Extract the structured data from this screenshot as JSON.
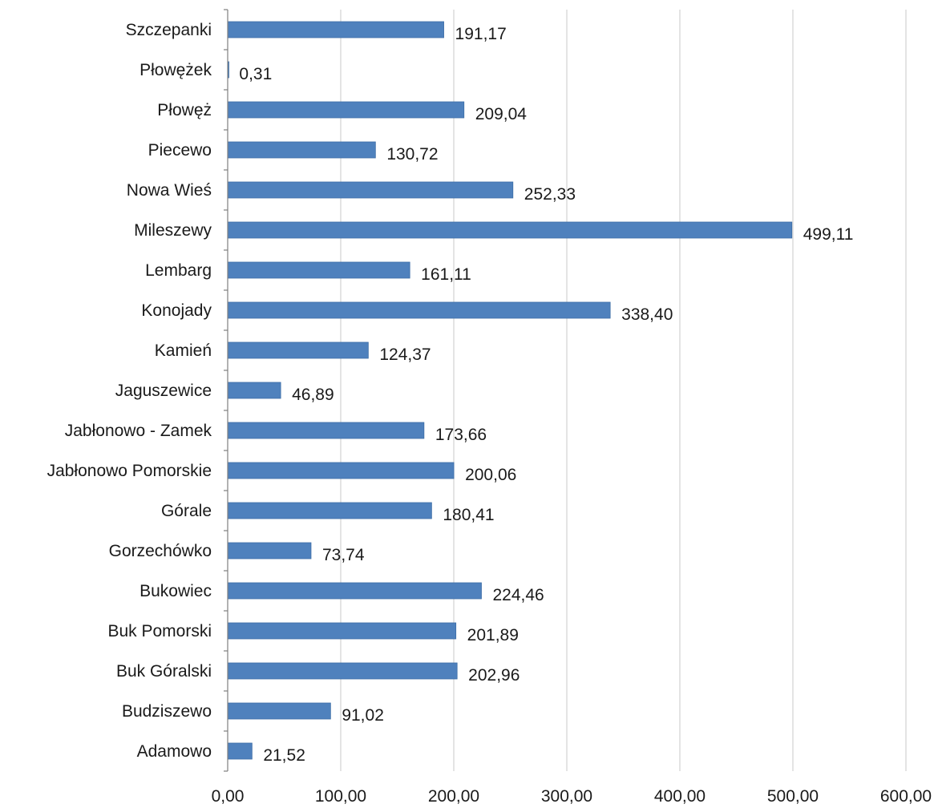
{
  "chart_data": {
    "type": "bar",
    "orientation": "horizontal",
    "categories": [
      "Szczepanki",
      "Płowężek",
      "Płowęż",
      "Piecewo",
      "Nowa Wieś",
      "Mileszewy",
      "Lembarg",
      "Konojady",
      "Kamień",
      "Jaguszewice",
      "Jabłonowo - Zamek",
      "Jabłonowo Pomorskie",
      "Górale",
      "Gorzechówko",
      "Bukowiec",
      "Buk Pomorski",
      "Buk Góralski",
      "Budziszewo",
      "Adamowo"
    ],
    "values": [
      191.17,
      0.31,
      209.04,
      130.72,
      252.33,
      499.11,
      161.11,
      338.4,
      124.37,
      46.89,
      173.66,
      200.06,
      180.41,
      73.74,
      224.46,
      201.89,
      202.96,
      91.02,
      21.52
    ],
    "value_labels": [
      "191,17",
      "0,31",
      "209,04",
      "130,72",
      "252,33",
      "499,11",
      "161,11",
      "338,40",
      "124,37",
      "46,89",
      "173,66",
      "200,06",
      "180,41",
      "73,74",
      "224,46",
      "201,89",
      "202,96",
      "91,02",
      "21,52"
    ],
    "xticks": [
      "0,00",
      "100,00",
      "200,00",
      "300,00",
      "400,00",
      "500,00",
      "600,00"
    ],
    "xlim": [
      0,
      600
    ],
    "grid": true,
    "bar_color": "#4f81bd"
  }
}
